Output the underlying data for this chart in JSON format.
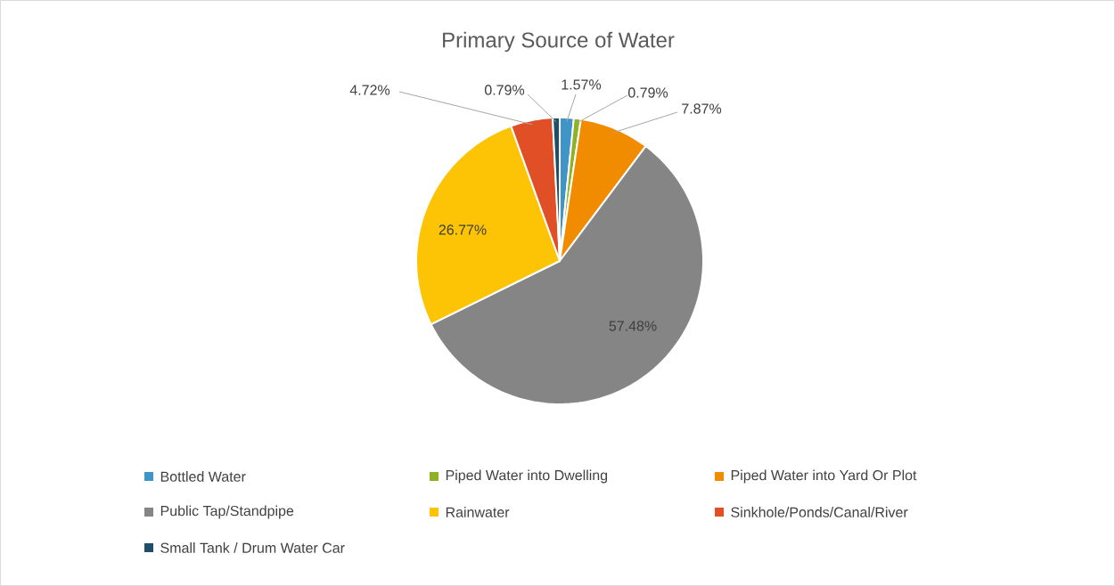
{
  "chart_data": {
    "type": "pie",
    "title": "Primary Source of Water",
    "categories": [
      "Bottled Water",
      "Piped Water into Dwelling",
      "Piped Water into Yard Or Plot",
      "Public Tap/Standpipe",
      "Rainwater",
      "Sinkhole/Ponds/Canal/River",
      "Small Tank / Drum Water Car"
    ],
    "values": [
      1.57,
      0.79,
      7.87,
      57.48,
      26.77,
      4.72,
      0.79
    ],
    "value_labels": [
      "1.57%",
      "0.79%",
      "7.87%",
      "57.48%",
      "26.77%",
      "4.72%",
      "0.79%"
    ],
    "colors": [
      "#3f94c8",
      "#8fb224",
      "#f18c00",
      "#858585",
      "#fdc305",
      "#e04f26",
      "#1f4e68"
    ],
    "legend": "bottom"
  }
}
